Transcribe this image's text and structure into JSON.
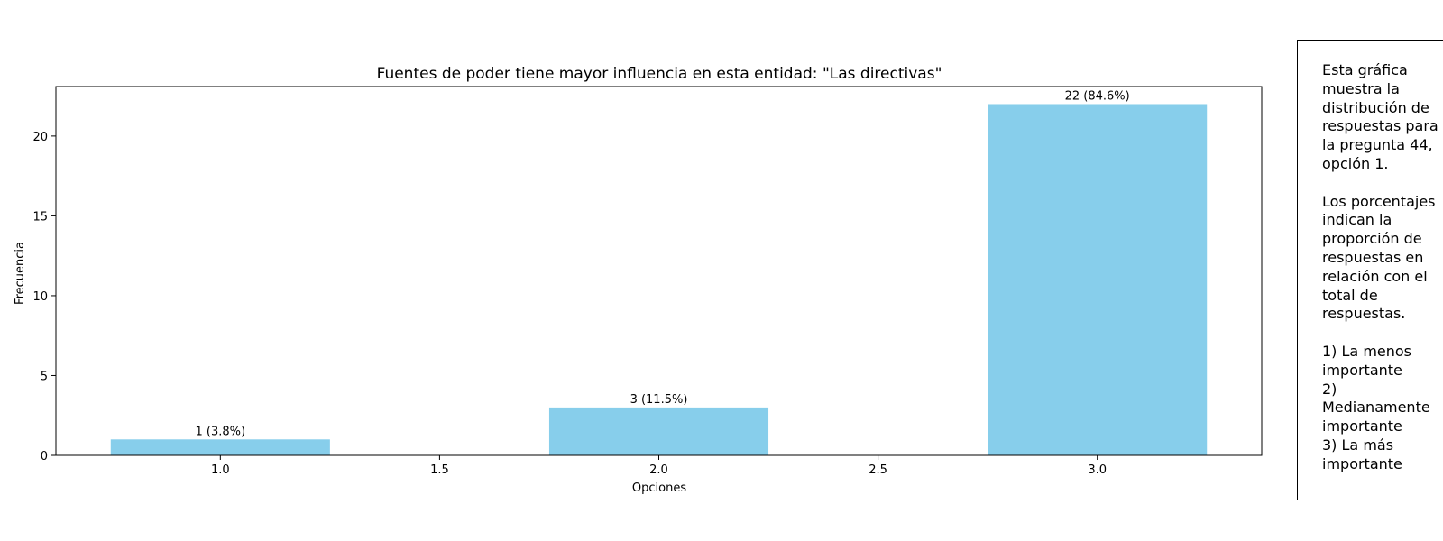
{
  "chart_data": {
    "type": "bar",
    "title": "Fuentes de poder tiene mayor influencia en esta entidad: \"Las directivas\"",
    "xlabel": "Opciones",
    "ylabel": "Frecuencia",
    "x": [
      1.0,
      2.0,
      3.0
    ],
    "values": [
      1,
      3,
      22
    ],
    "bar_labels": [
      "1 (3.8%)",
      "3 (11.5%)",
      "22 (84.6%)"
    ],
    "bar_width": 0.5,
    "xlim": [
      0.625,
      3.375
    ],
    "ylim": [
      0,
      23.1
    ],
    "xticks": [
      1.0,
      1.5,
      2.0,
      2.5,
      3.0
    ],
    "xtick_labels": [
      "1.0",
      "1.5",
      "2.0",
      "2.5",
      "3.0"
    ],
    "yticks": [
      0,
      5,
      10,
      15,
      20
    ],
    "ytick_labels": [
      "0",
      "5",
      "10",
      "15",
      "20"
    ],
    "bar_color": "#87CEEB",
    "grid": false,
    "legend": null
  },
  "note": {
    "text": "Esta gráfica\nmuestra la\ndistribución de\nrespuestas para\nla pregunta 44,\nopción 1.\n\nLos porcentajes\nindican la\nproporción de\nrespuestas en\nrelación con el\ntotal de\nrespuestas.\n\n1) La menos\nimportante\n2)\nMedianamente\nimportante\n3) La más\nimportante"
  }
}
